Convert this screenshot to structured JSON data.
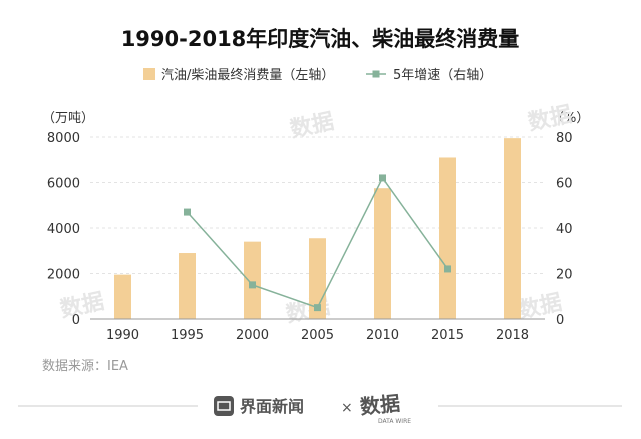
{
  "chart_data": {
    "type": "bar+line",
    "title": "1990-2018年印度汽油、柴油最终消费量",
    "categories": [
      "1990",
      "1995",
      "2000",
      "2005",
      "2010",
      "2015",
      "2018"
    ],
    "series": [
      {
        "name": "汽油/柴油最终消费量（左轴）",
        "type": "bar",
        "axis": "left",
        "color": "#f3cf96",
        "values": [
          1950,
          2900,
          3400,
          3550,
          5750,
          7100,
          7950
        ]
      },
      {
        "name": "5年增速（右轴）",
        "type": "line",
        "axis": "right",
        "color": "#86b29a",
        "values": [
          null,
          47,
          15,
          5,
          62,
          22,
          null
        ]
      }
    ],
    "left_axis": {
      "unit_label": "（万吨）",
      "min": 0,
      "max": 8000,
      "ticks": [
        0,
        2000,
        4000,
        6000,
        8000
      ]
    },
    "right_axis": {
      "unit_label": "（%）",
      "min": 0,
      "max": 80,
      "ticks": [
        0,
        20,
        40,
        60,
        80
      ]
    },
    "grid": true,
    "legend_placement": "top-center"
  },
  "source": "数据来源：IEA",
  "footer": {
    "brand": "界面新闻",
    "separator": "×",
    "partner": "数据",
    "partner_sub": "DATA WIRE"
  },
  "watermark": "数据"
}
